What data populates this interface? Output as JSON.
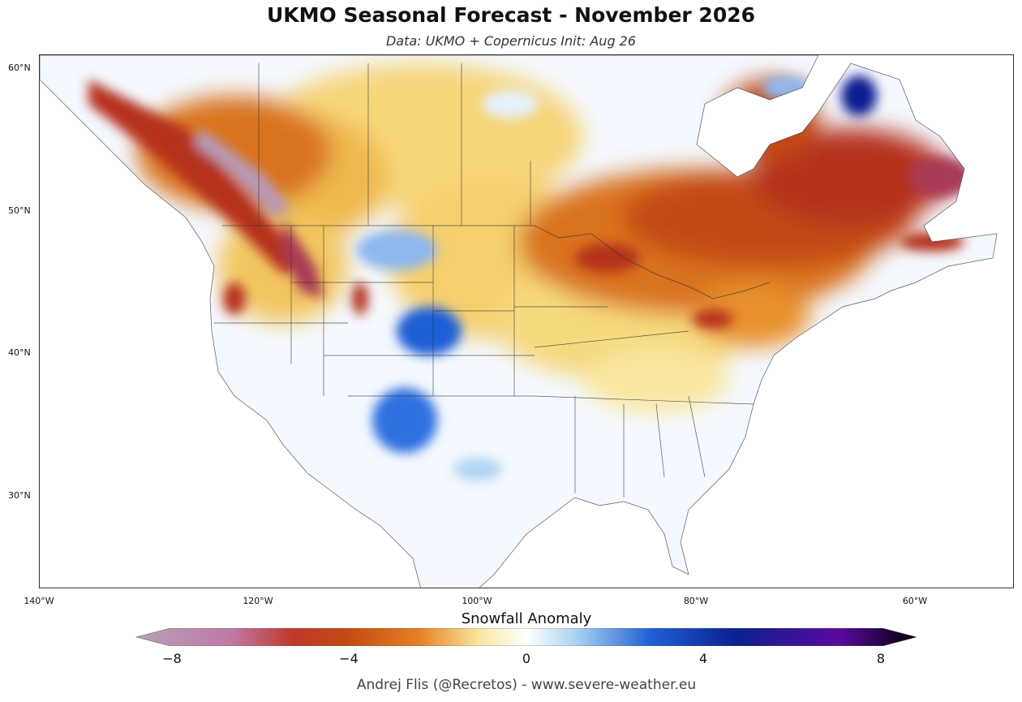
{
  "title": "UKMO Seasonal Forecast - November 2026",
  "subtitle": "Data: UKMO + Copernicus   Init: Aug 26",
  "lat_labels": [
    "60°N",
    "50°N",
    "40°N",
    "30°N"
  ],
  "lon_labels": [
    "140°W",
    "120°W",
    "100°W",
    "80°W",
    "60°W"
  ],
  "colorbar": {
    "title": "Snowfall Anomaly",
    "ticks": [
      "−8",
      "−4",
      "0",
      "4",
      "8"
    ],
    "min": -8,
    "max": 8
  },
  "credit": "Andrej Flis (@Recretos) - www.severe-weather.eu",
  "colors": {
    "strong_negative": "#b8a0b8",
    "negative": "#c0392b",
    "mild_negative": "#e67e22",
    "slight_negative": "#f9e79f",
    "neutral": "#ffffff",
    "slight_positive": "#aed6f1",
    "positive": "#1f5fd6",
    "strong_positive": "#0b1f8f",
    "extreme_positive": "#000000"
  }
}
